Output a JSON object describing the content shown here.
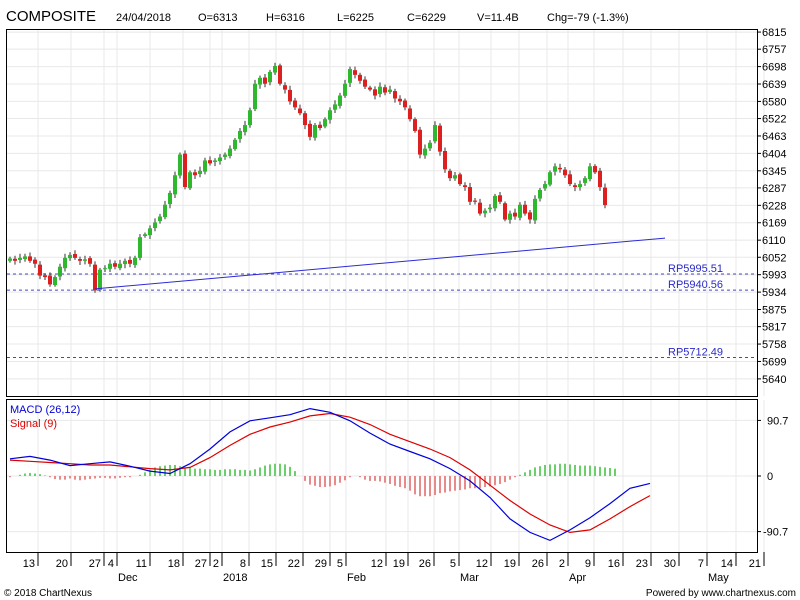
{
  "header": {
    "symbol": "COMPOSITE",
    "date": "24/04/2018",
    "open": "O=6313",
    "high": "H=6316",
    "low": "L=6225",
    "close": "C=6229",
    "volume": "V=11.4B",
    "change": "Chg=-79 (-1.3%)"
  },
  "footer": {
    "copyright": "© 2018 ChartNexus",
    "powered": "Powered by www.chartnexus.com"
  },
  "colors": {
    "up": "#2db82d",
    "down": "#dd1f1f",
    "line": "#2b2bd6",
    "macd": "#0000dd",
    "signal": "#dd0000",
    "grid": "#e8e8e8",
    "axis": "#000000"
  },
  "chart_data": [
    {
      "type": "candlestick",
      "title": "COMPOSITE",
      "ylim": [
        5582,
        6822
      ],
      "y_ticks": [
        "6815",
        "6757",
        "6698",
        "6639",
        "6580",
        "6522",
        "6463",
        "6404",
        "6345",
        "6287",
        "6228",
        "6169",
        "6110",
        "6052",
        "5993",
        "5934",
        "5875",
        "5817",
        "5758",
        "5699",
        "5640"
      ],
      "x_ticks": [
        {
          "day": "13",
          "month": ""
        },
        {
          "day": "20",
          "month": ""
        },
        {
          "day": "27",
          "month": ""
        },
        {
          "day": "4",
          "month": "Dec"
        },
        {
          "day": "11",
          "month": ""
        },
        {
          "day": "18",
          "month": ""
        },
        {
          "day": "27",
          "month": ""
        },
        {
          "day": "2",
          "month": "2018"
        },
        {
          "day": "8",
          "month": ""
        },
        {
          "day": "15",
          "month": ""
        },
        {
          "day": "22",
          "month": ""
        },
        {
          "day": "29",
          "month": ""
        },
        {
          "day": "5",
          "month": "Feb"
        },
        {
          "day": "12",
          "month": ""
        },
        {
          "day": "19",
          "month": ""
        },
        {
          "day": "26",
          "month": ""
        },
        {
          "day": "5",
          "month": "Mar"
        },
        {
          "day": "12",
          "month": ""
        },
        {
          "day": "19",
          "month": ""
        },
        {
          "day": "26",
          "month": ""
        },
        {
          "day": "2",
          "month": "Apr"
        },
        {
          "day": "9",
          "month": ""
        },
        {
          "day": "16",
          "month": ""
        },
        {
          "day": "23",
          "month": ""
        },
        {
          "day": "30",
          "month": ""
        },
        {
          "day": "7",
          "month": "May"
        },
        {
          "day": "14",
          "month": ""
        },
        {
          "day": "21",
          "month": ""
        }
      ],
      "closes": [
        6048,
        6040,
        6050,
        6055,
        6040,
        6030,
        5990,
        5985,
        5960,
        5985,
        6020,
        6050,
        6060,
        6050,
        6040,
        6045,
        6030,
        5940,
        6010,
        6015,
        6030,
        6020,
        6030,
        6040,
        6030,
        6050,
        6120,
        6130,
        6150,
        6170,
        6190,
        6230,
        6270,
        6330,
        6400,
        6290,
        6340,
        6330,
        6345,
        6380,
        6370,
        6380,
        6390,
        6400,
        6420,
        6450,
        6480,
        6500,
        6550,
        6640,
        6660,
        6640,
        6680,
        6700,
        6640,
        6620,
        6580,
        6560,
        6540,
        6500,
        6460,
        6500,
        6490,
        6520,
        6550,
        6570,
        6600,
        6640,
        6690,
        6670,
        6650,
        6630,
        6620,
        6600,
        6630,
        6610,
        6620,
        6590,
        6580,
        6560,
        6520,
        6480,
        6400,
        6420,
        6440,
        6500,
        6410,
        6350,
        6320,
        6330,
        6300,
        6290,
        6240,
        6240,
        6200,
        6210,
        6220,
        6260,
        6240,
        6180,
        6200,
        6190,
        6230,
        6200,
        6180,
        6250,
        6280,
        6300,
        6340,
        6360,
        6350,
        6330,
        6300,
        6290,
        6300,
        6320,
        6360,
        6340,
        6290,
        6229
      ],
      "trendline": {
        "from": {
          "bar": 17,
          "price": 5945
        },
        "to": {
          "bar": 131,
          "price": 6117
        }
      },
      "support_levels": [
        {
          "label": "RP5995.51",
          "value": 5995.51
        },
        {
          "label": "RP5940.56",
          "value": 5940.56
        },
        {
          "label": "RP5712.49",
          "value": 5712.49
        }
      ]
    },
    {
      "type": "macd",
      "macd_label": "MACD (26,12)",
      "signal_label": "Signal (9)",
      "ylim": [
        -124,
        124
      ],
      "y_ticks": [
        {
          "label": "90.7",
          "value": 90.7
        },
        {
          "label": "0",
          "value": 0
        },
        {
          "label": "-90.7",
          "value": -90.7
        }
      ],
      "macd": [
        [
          0,
          28
        ],
        [
          4,
          32
        ],
        [
          8,
          26
        ],
        [
          12,
          17
        ],
        [
          16,
          20
        ],
        [
          20,
          23
        ],
        [
          24,
          16
        ],
        [
          28,
          8
        ],
        [
          32,
          4
        ],
        [
          36,
          20
        ],
        [
          40,
          44
        ],
        [
          44,
          72
        ],
        [
          48,
          90
        ],
        [
          52,
          95
        ],
        [
          56,
          100
        ],
        [
          60,
          110
        ],
        [
          64,
          104
        ],
        [
          68,
          90
        ],
        [
          72,
          70
        ],
        [
          76,
          52
        ],
        [
          80,
          40
        ],
        [
          84,
          28
        ],
        [
          88,
          12
        ],
        [
          92,
          -8
        ],
        [
          96,
          -35
        ],
        [
          100,
          -70
        ],
        [
          104,
          -92
        ],
        [
          108,
          -105
        ],
        [
          112,
          -88
        ],
        [
          116,
          -68
        ],
        [
          120,
          -45
        ],
        [
          124,
          -20
        ],
        [
          128,
          -12
        ]
      ],
      "signal": [
        [
          0,
          26
        ],
        [
          4,
          24
        ],
        [
          8,
          22
        ],
        [
          12,
          20
        ],
        [
          16,
          18
        ],
        [
          20,
          18
        ],
        [
          24,
          15
        ],
        [
          28,
          12
        ],
        [
          32,
          10
        ],
        [
          36,
          14
        ],
        [
          40,
          30
        ],
        [
          44,
          50
        ],
        [
          48,
          68
        ],
        [
          52,
          80
        ],
        [
          56,
          88
        ],
        [
          60,
          98
        ],
        [
          64,
          102
        ],
        [
          68,
          96
        ],
        [
          72,
          84
        ],
        [
          76,
          68
        ],
        [
          80,
          56
        ],
        [
          84,
          44
        ],
        [
          88,
          30
        ],
        [
          92,
          10
        ],
        [
          96,
          -15
        ],
        [
          100,
          -40
        ],
        [
          104,
          -62
        ],
        [
          108,
          -80
        ],
        [
          112,
          -92
        ],
        [
          116,
          -88
        ],
        [
          120,
          -70
        ],
        [
          124,
          -50
        ],
        [
          128,
          -32
        ]
      ],
      "histogram": [
        -2,
        0,
        2,
        4,
        5,
        4,
        3,
        1,
        -2,
        -5,
        -6,
        -6,
        -4,
        -6,
        -7,
        -6,
        -5,
        -4,
        -3,
        -3,
        -4,
        -4,
        -3,
        -2,
        -2,
        0,
        2,
        6,
        10,
        14,
        16,
        17,
        18,
        18,
        16,
        14,
        13,
        12,
        12,
        11,
        11,
        10,
        10,
        11,
        11,
        11,
        10,
        10,
        9,
        11,
        14,
        17,
        19,
        20,
        20,
        19,
        15,
        8,
        0,
        -8,
        -14,
        -16,
        -18,
        -18,
        -17,
        -15,
        -11,
        -7,
        -2,
        0,
        -2,
        -6,
        -8,
        -8,
        -9,
        -11,
        -13,
        -16,
        -18,
        -20,
        -24,
        -30,
        -33,
        -33,
        -33,
        -31,
        -28,
        -27,
        -25,
        -24,
        -23,
        -22,
        -20,
        -20,
        -20,
        -18,
        -17,
        -15,
        -13,
        -10,
        -6,
        -2,
        2,
        6,
        10,
        14,
        16,
        18,
        19,
        19,
        20,
        20,
        19,
        18,
        17,
        17,
        17,
        16,
        15,
        14,
        13,
        12
      ]
    }
  ]
}
